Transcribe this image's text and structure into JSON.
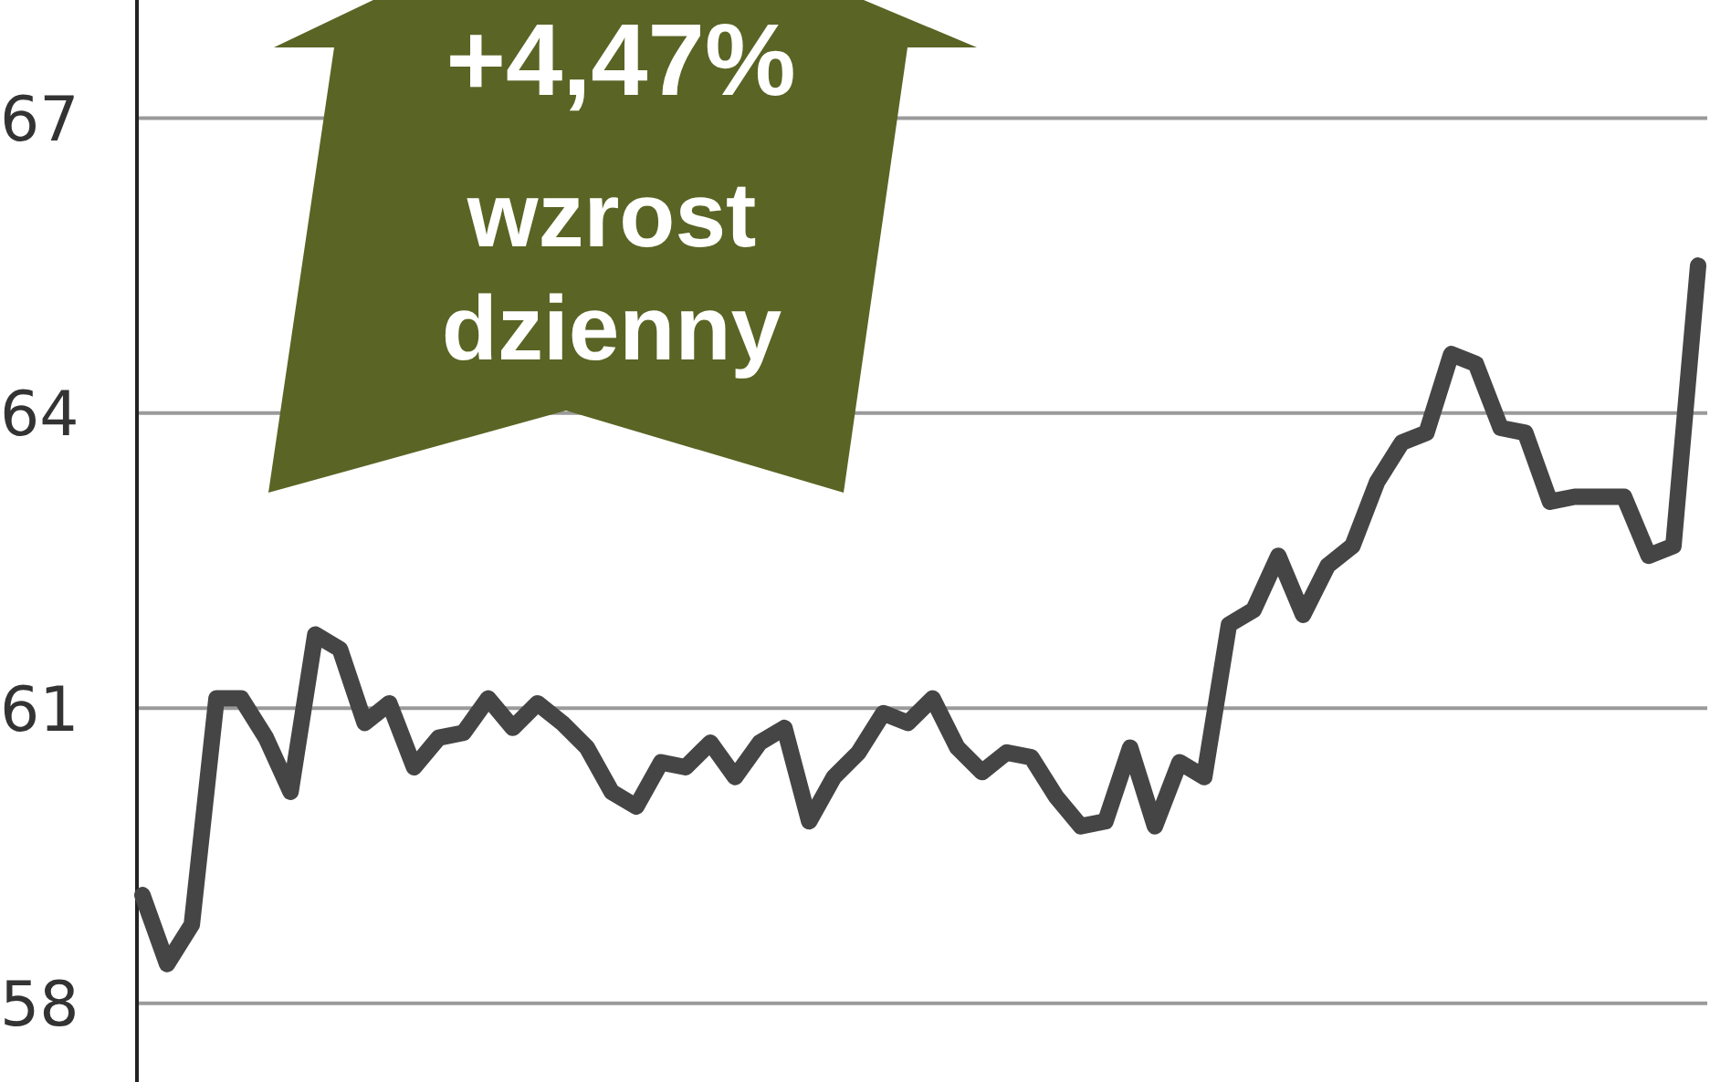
{
  "chart_data": {
    "type": "line",
    "categories": [
      null,
      null,
      null,
      null,
      null,
      null,
      null,
      null,
      null,
      null,
      null,
      null,
      null,
      null,
      null,
      null,
      null,
      null,
      null,
      null,
      null,
      null,
      null,
      null,
      null,
      null,
      null,
      null,
      null,
      null,
      null,
      null,
      null,
      null,
      null,
      null,
      null,
      null,
      null,
      null,
      null,
      null,
      null,
      null,
      null,
      null,
      null,
      null,
      null,
      null,
      null,
      null,
      null,
      null,
      null,
      null,
      null,
      null,
      null,
      null,
      null,
      null,
      null,
      null
    ],
    "series": [
      {
        "color": "#454545",
        "values": [
          59.1,
          58.4,
          58.8,
          61.1,
          61.1,
          60.7,
          60.15,
          61.75,
          61.6,
          60.85,
          61.05,
          60.4,
          60.7,
          60.75,
          61.1,
          60.8,
          61.05,
          60.85,
          60.6,
          60.15,
          60.0,
          60.45,
          60.4,
          60.65,
          60.3,
          60.65,
          60.8,
          59.85,
          60.3,
          60.55,
          60.95,
          60.85,
          61.1,
          60.6,
          60.35,
          60.55,
          60.5,
          60.1,
          59.8,
          59.85,
          60.6,
          59.8,
          60.45,
          60.3,
          61.85,
          62.0,
          62.55,
          61.95,
          62.45,
          62.65,
          63.3,
          63.7,
          63.8,
          64.6,
          64.5,
          63.85,
          63.8,
          63.1,
          63.15,
          63.15,
          63.15,
          62.55,
          62.65,
          65.5
        ]
      }
    ],
    "ylim": [
      57.2,
      68.2
    ],
    "yticks": [
      58,
      61,
      64,
      67
    ],
    "grid": "y",
    "line_style": "solid",
    "marker": "none",
    "annotations": [
      "+4,47%",
      "wzrost dzienny"
    ]
  }
}
